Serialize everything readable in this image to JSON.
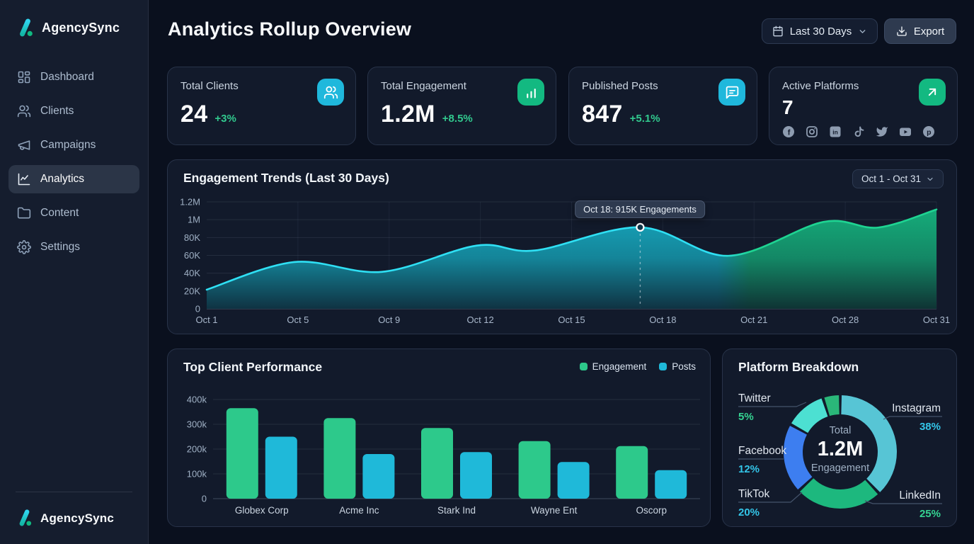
{
  "app": {
    "name": "AgencySync"
  },
  "sidebar": {
    "items": [
      {
        "label": "Dashboard",
        "icon": "dashboard-icon",
        "active": false
      },
      {
        "label": "Clients",
        "icon": "users-icon",
        "active": false
      },
      {
        "label": "Campaigns",
        "icon": "megaphone-icon",
        "active": false
      },
      {
        "label": "Analytics",
        "icon": "line-chart-icon",
        "active": true
      },
      {
        "label": "Content",
        "icon": "folder-icon",
        "active": false
      },
      {
        "label": "Settings",
        "icon": "gear-icon",
        "active": false
      }
    ],
    "footer_brand": "AgencySync"
  },
  "header": {
    "title": "Analytics Rollup Overview",
    "date_range_label": "Last 30 Days",
    "export_label": "Export"
  },
  "stats": [
    {
      "label": "Total Clients",
      "value": "24",
      "delta": "+3%",
      "icon": "users-icon",
      "icon_bg": "#1fb8dc"
    },
    {
      "label": "Total Engagement",
      "value": "1.2M",
      "delta": "+8.5%",
      "icon": "bar-chart-icon",
      "icon_bg": "#13b981"
    },
    {
      "label": "Published Posts",
      "value": "847",
      "delta": "+5.1%",
      "icon": "message-icon",
      "icon_bg": "#1fb8dc"
    },
    {
      "label": "Active Platforms",
      "value": "7",
      "delta": "",
      "icon": "arrow-up-right-icon",
      "icon_bg": "#13b981",
      "platforms": [
        "facebook",
        "instagram",
        "linkedin",
        "tiktok",
        "twitter",
        "youtube",
        "pinterest"
      ]
    }
  ],
  "colors": {
    "cyan": "#26d0e8",
    "green": "#13b981",
    "positive": "#31c98e",
    "card_bg": "#121a2b",
    "sidebar_bg": "#151d2e",
    "page_bg": "#0a101e"
  },
  "chart_data": [
    {
      "type": "area",
      "title": "Engagement Trends (Last 30 Days)",
      "range_label": "Oct 1 - Oct 31",
      "y_ticks": [
        "1.2M",
        "1M",
        "80K",
        "60K",
        "40K",
        "20K",
        "0"
      ],
      "x_ticks": [
        "Oct 1",
        "Oct 5",
        "Oct 9",
        "Oct 12",
        "Oct 15",
        "Oct 18",
        "Oct 21",
        "Oct 28",
        "Oct 31"
      ],
      "ylim": [
        0,
        1200
      ],
      "unit": "K engagements",
      "points": [
        {
          "t": 0.0,
          "v": 215
        },
        {
          "t": 0.12,
          "v": 525
        },
        {
          "t": 0.24,
          "v": 415
        },
        {
          "t": 0.37,
          "v": 710
        },
        {
          "t": 0.45,
          "v": 655
        },
        {
          "t": 0.594,
          "v": 915
        },
        {
          "t": 0.715,
          "v": 595
        },
        {
          "t": 0.845,
          "v": 975
        },
        {
          "t": 0.92,
          "v": 912
        },
        {
          "t": 1.0,
          "v": 1115
        }
      ],
      "highlight": {
        "t": 0.594,
        "v": 915,
        "label": "Oct 18: 915K Engagements"
      },
      "color_start": "#26d0e8",
      "color_end": "#16bd84"
    },
    {
      "type": "bar",
      "title": "Top Client Performance",
      "categories": [
        "Globex Corp",
        "Acme Inc",
        "Stark Ind",
        "Wayne Ent",
        "Oscorp"
      ],
      "series": [
        {
          "name": "Engagement",
          "color": "#2dc98b",
          "values": [
            365000,
            325000,
            285000,
            232000,
            212000
          ]
        },
        {
          "name": "Posts",
          "color": "#1fb9d9",
          "values": [
            250000,
            180000,
            188000,
            148000,
            115000
          ]
        }
      ],
      "y_ticks": [
        "400k",
        "300k",
        "200k",
        "100k",
        "0"
      ],
      "ylim": [
        0,
        400000
      ]
    },
    {
      "type": "pie",
      "title": "Platform Breakdown",
      "center": {
        "top": "Total",
        "value": "1.2M",
        "bottom": "Engagement"
      },
      "slices": [
        {
          "name": "Instagram",
          "pct": 38,
          "color": "#57c5d5",
          "pct_color": "#33c5e8"
        },
        {
          "name": "LinkedIn",
          "pct": 25,
          "color": "#1db87e",
          "pct_color": "#35d392"
        },
        {
          "name": "TikTok",
          "pct": 20,
          "color": "#3d7ef0",
          "pct_color": "#33c5e8"
        },
        {
          "name": "Facebook",
          "pct": 12,
          "color": "#4ce0d2",
          "pct_color": "#33c5e8"
        },
        {
          "name": "Twitter",
          "pct": 5,
          "color": "#2ab779",
          "pct_color": "#35d392"
        }
      ]
    }
  ]
}
